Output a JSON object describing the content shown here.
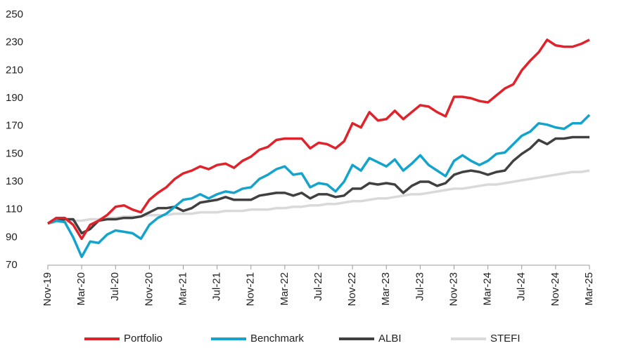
{
  "chart_data": {
    "type": "line",
    "categories": [
      "Nov-19",
      null,
      null,
      null,
      "Mar-20",
      null,
      null,
      null,
      "Jul-20",
      null,
      null,
      null,
      "Nov-20",
      null,
      null,
      null,
      "Mar-21",
      null,
      null,
      null,
      "Jul-21",
      null,
      null,
      null,
      "Nov-21",
      null,
      null,
      null,
      "Mar-22",
      null,
      null,
      null,
      "Jul-22",
      null,
      null,
      null,
      "Nov-22",
      null,
      null,
      null,
      "Mar-23",
      null,
      null,
      null,
      "Jul-23",
      null,
      null,
      null,
      "Nov-23",
      null,
      null,
      null,
      "Mar-24",
      null,
      null,
      null,
      "Jul-24",
      null,
      null,
      null,
      "Nov-24",
      null,
      null,
      null,
      "Mar-25"
    ],
    "series": [
      {
        "name": "Portfolio",
        "color": "#e0232b",
        "values": [
          100,
          104,
          104,
          99,
          89,
          99,
          102,
          106,
          112,
          113,
          110,
          108,
          117,
          122,
          126,
          132,
          136,
          138,
          141,
          139,
          142,
          143,
          140,
          145,
          148,
          153,
          155,
          160,
          161,
          161,
          161,
          154,
          158,
          157,
          154,
          159,
          172,
          169,
          180,
          174,
          175,
          181,
          175,
          180,
          185,
          184,
          180,
          177,
          191,
          191,
          190,
          188,
          187,
          192,
          197,
          200,
          210,
          217,
          223,
          232,
          228,
          227,
          227,
          229,
          232
        ]
      },
      {
        "name": "Benchmark",
        "color": "#14a3cc",
        "values": [
          100,
          102,
          101,
          90,
          76,
          87,
          86,
          92,
          95,
          94,
          93,
          89,
          99,
          104,
          107,
          112,
          117,
          118,
          121,
          118,
          121,
          123,
          122,
          125,
          126,
          132,
          135,
          139,
          141,
          135,
          136,
          126,
          129,
          128,
          123,
          130,
          142,
          138,
          147,
          144,
          141,
          146,
          138,
          143,
          149,
          142,
          138,
          134,
          145,
          149,
          145,
          142,
          145,
          150,
          151,
          157,
          163,
          166,
          172,
          171,
          169,
          168,
          172,
          172,
          178
        ]
      },
      {
        "name": "ALBI",
        "color": "#404040",
        "values": [
          100,
          102,
          103,
          103,
          93,
          96,
          102,
          103,
          103,
          104,
          104,
          105,
          108,
          111,
          111,
          112,
          109,
          111,
          115,
          116,
          117,
          119,
          117,
          117,
          117,
          120,
          121,
          122,
          122,
          120,
          122,
          118,
          121,
          121,
          119,
          120,
          125,
          125,
          129,
          128,
          129,
          128,
          122,
          127,
          130,
          130,
          127,
          129,
          135,
          137,
          138,
          137,
          135,
          137,
          138,
          145,
          150,
          154,
          160,
          157,
          161,
          161,
          162,
          162,
          162
        ]
      },
      {
        "name": "STEFI",
        "color": "#d9d9d9",
        "values": [
          100,
          101,
          101,
          102,
          102,
          103,
          103,
          104,
          104,
          105,
          105,
          105,
          106,
          106,
          106,
          107,
          107,
          107,
          108,
          108,
          108,
          109,
          109,
          109,
          110,
          110,
          110,
          111,
          111,
          112,
          112,
          113,
          113,
          114,
          114,
          115,
          116,
          116,
          117,
          118,
          118,
          119,
          120,
          121,
          121,
          122,
          123,
          124,
          125,
          125,
          126,
          127,
          128,
          128,
          129,
          130,
          131,
          132,
          133,
          134,
          135,
          136,
          137,
          137,
          138
        ]
      }
    ],
    "ylim": [
      70,
      250
    ],
    "yticks": [
      70,
      90,
      110,
      130,
      150,
      170,
      190,
      210,
      230,
      250
    ],
    "grid": false
  }
}
